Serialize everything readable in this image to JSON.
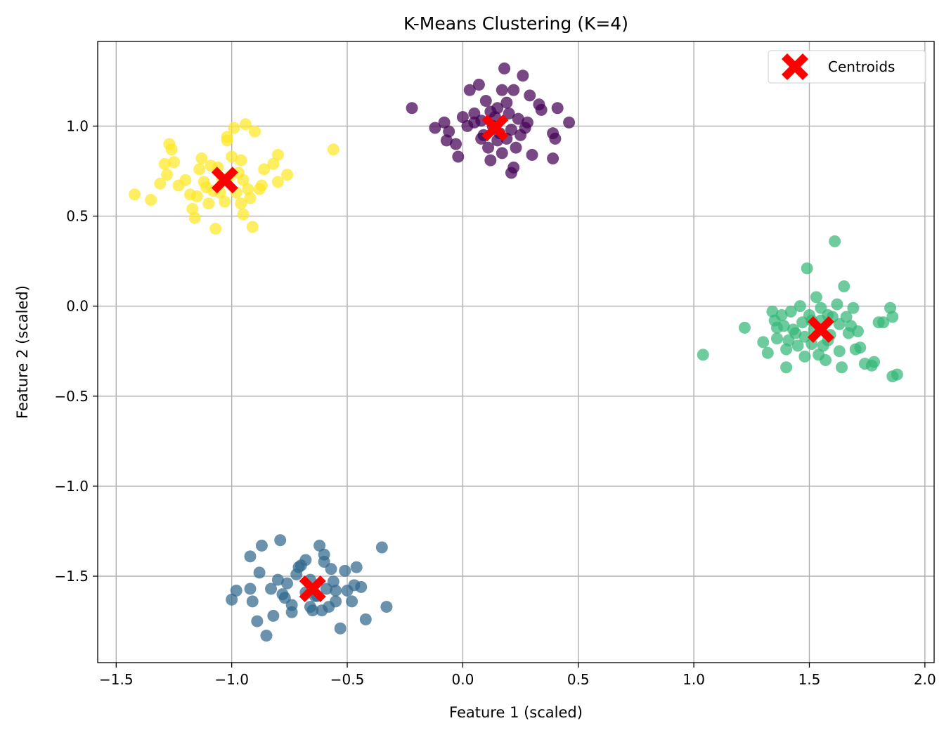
{
  "chart_data": {
    "type": "scatter",
    "title": "K-Means Clustering (K=4)",
    "xlabel": "Feature 1 (scaled)",
    "ylabel": "Feature 2 (scaled)",
    "xlim": [
      -1.58,
      2.04
    ],
    "ylim": [
      -1.98,
      1.47
    ],
    "xticks": [
      -1.5,
      -1.0,
      -0.5,
      0.0,
      0.5,
      1.0,
      1.5,
      2.0
    ],
    "xtick_labels": [
      "−1.5",
      "−1.0",
      "−0.5",
      "0.0",
      "0.5",
      "1.0",
      "1.5",
      "2.0"
    ],
    "yticks": [
      -1.5,
      -1.0,
      -0.5,
      0.0,
      0.5,
      1.0
    ],
    "ytick_labels": [
      "−1.5",
      "−1.0",
      "−0.5",
      "0.0",
      "0.5",
      "1.0"
    ],
    "grid": true,
    "legend": {
      "placement": "top-right",
      "entries": [
        "Centroids"
      ]
    },
    "clusters": [
      {
        "color": "#440154",
        "points": [
          [
            -0.22,
            1.1
          ],
          [
            -0.12,
            0.99
          ],
          [
            -0.08,
            1.02
          ],
          [
            -0.06,
            0.97
          ],
          [
            -0.03,
            0.9
          ],
          [
            0.0,
            1.05
          ],
          [
            0.02,
            1.0
          ],
          [
            0.03,
            1.2
          ],
          [
            0.05,
            1.07
          ],
          [
            0.07,
            1.23
          ],
          [
            0.08,
            1.03
          ],
          [
            0.09,
            0.95
          ],
          [
            0.1,
            1.14
          ],
          [
            0.11,
            0.88
          ],
          [
            0.12,
            0.81
          ],
          [
            0.13,
            1.0
          ],
          [
            0.15,
            1.1
          ],
          [
            0.16,
            0.96
          ],
          [
            0.17,
            1.2
          ],
          [
            0.18,
            1.32
          ],
          [
            0.19,
            0.93
          ],
          [
            0.2,
            1.07
          ],
          [
            0.21,
            0.74
          ],
          [
            0.22,
            1.2
          ],
          [
            0.23,
            0.88
          ],
          [
            0.24,
            1.04
          ],
          [
            0.26,
            1.28
          ],
          [
            0.27,
            0.99
          ],
          [
            0.28,
            1.02
          ],
          [
            0.29,
            1.17
          ],
          [
            0.3,
            0.84
          ],
          [
            0.33,
            1.12
          ],
          [
            0.34,
            1.09
          ],
          [
            0.39,
            0.96
          ],
          [
            0.4,
            0.93
          ],
          [
            0.41,
            1.1
          ],
          [
            0.46,
            1.02
          ],
          [
            0.39,
            0.82
          ],
          [
            -0.07,
            0.92
          ],
          [
            0.05,
            1.02
          ],
          [
            0.14,
            1.05
          ],
          [
            0.17,
            0.85
          ],
          [
            0.19,
            1.13
          ],
          [
            0.25,
            0.95
          ],
          [
            0.21,
            0.98
          ],
          [
            0.15,
            0.92
          ],
          [
            -0.02,
            0.83
          ],
          [
            0.22,
            0.77
          ],
          [
            0.08,
            0.93
          ],
          [
            0.12,
            1.08
          ]
        ]
      },
      {
        "color": "#31688e",
        "points": [
          [
            -1.0,
            -1.63
          ],
          [
            -0.98,
            -1.58
          ],
          [
            -0.92,
            -1.39
          ],
          [
            -0.91,
            -1.64
          ],
          [
            -0.89,
            -1.75
          ],
          [
            -0.87,
            -1.33
          ],
          [
            -0.85,
            -1.83
          ],
          [
            -0.83,
            -1.57
          ],
          [
            -0.82,
            -1.72
          ],
          [
            -0.8,
            -1.52
          ],
          [
            -0.79,
            -1.3
          ],
          [
            -0.78,
            -1.6
          ],
          [
            -0.76,
            -1.54
          ],
          [
            -0.74,
            -1.66
          ],
          [
            -0.72,
            -1.49
          ],
          [
            -0.7,
            -1.44
          ],
          [
            -0.68,
            -1.41
          ],
          [
            -0.66,
            -1.52
          ],
          [
            -0.65,
            -1.69
          ],
          [
            -0.63,
            -1.61
          ],
          [
            -0.62,
            -1.33
          ],
          [
            -0.6,
            -1.38
          ],
          [
            -0.59,
            -1.57
          ],
          [
            -0.57,
            -1.46
          ],
          [
            -0.56,
            -1.53
          ],
          [
            -0.55,
            -1.64
          ],
          [
            -0.53,
            -1.79
          ],
          [
            -0.51,
            -1.47
          ],
          [
            -0.5,
            -1.58
          ],
          [
            -0.48,
            -1.64
          ],
          [
            -0.46,
            -1.45
          ],
          [
            -0.44,
            -1.56
          ],
          [
            -0.42,
            -1.74
          ],
          [
            -0.35,
            -1.34
          ],
          [
            -0.33,
            -1.67
          ],
          [
            -0.92,
            -1.57
          ],
          [
            -0.88,
            -1.48
          ],
          [
            -0.74,
            -1.7
          ],
          [
            -0.64,
            -1.61
          ],
          [
            -0.58,
            -1.67
          ],
          [
            -0.55,
            -1.58
          ],
          [
            -0.71,
            -1.45
          ],
          [
            -0.68,
            -1.59
          ],
          [
            -0.61,
            -1.69
          ],
          [
            -0.77,
            -1.62
          ],
          [
            -0.6,
            -1.42
          ],
          [
            -0.47,
            -1.55
          ],
          [
            -0.66,
            -1.67
          ]
        ]
      },
      {
        "color": "#35b779",
        "points": [
          [
            1.04,
            -0.27
          ],
          [
            1.22,
            -0.12
          ],
          [
            1.3,
            -0.2
          ],
          [
            1.32,
            -0.26
          ],
          [
            1.34,
            -0.03
          ],
          [
            1.35,
            -0.08
          ],
          [
            1.36,
            -0.18
          ],
          [
            1.38,
            -0.05
          ],
          [
            1.39,
            -0.11
          ],
          [
            1.4,
            -0.24
          ],
          [
            1.4,
            -0.34
          ],
          [
            1.42,
            -0.03
          ],
          [
            1.43,
            -0.13
          ],
          [
            1.45,
            -0.22
          ],
          [
            1.46,
            0.0
          ],
          [
            1.47,
            -0.09
          ],
          [
            1.48,
            -0.17
          ],
          [
            1.49,
            0.21
          ],
          [
            1.5,
            -0.05
          ],
          [
            1.51,
            -0.21
          ],
          [
            1.52,
            -0.13
          ],
          [
            1.53,
            0.05
          ],
          [
            1.54,
            -0.27
          ],
          [
            1.55,
            -0.08
          ],
          [
            1.56,
            -0.22
          ],
          [
            1.57,
            -0.3
          ],
          [
            1.58,
            -0.05
          ],
          [
            1.59,
            -0.16
          ],
          [
            1.6,
            -0.06
          ],
          [
            1.61,
            0.36
          ],
          [
            1.62,
            0.01
          ],
          [
            1.63,
            -0.25
          ],
          [
            1.64,
            -0.34
          ],
          [
            1.65,
            0.11
          ],
          [
            1.66,
            -0.06
          ],
          [
            1.68,
            -0.11
          ],
          [
            1.69,
            -0.01
          ],
          [
            1.7,
            -0.24
          ],
          [
            1.72,
            -0.23
          ],
          [
            1.74,
            -0.32
          ],
          [
            1.77,
            -0.33
          ],
          [
            1.78,
            -0.31
          ],
          [
            1.8,
            -0.09
          ],
          [
            1.82,
            -0.09
          ],
          [
            1.85,
            -0.01
          ],
          [
            1.86,
            -0.06
          ],
          [
            1.86,
            -0.39
          ],
          [
            1.88,
            -0.38
          ],
          [
            1.44,
            -0.15
          ],
          [
            1.51,
            -0.08
          ],
          [
            1.58,
            -0.19
          ],
          [
            1.63,
            -0.1
          ],
          [
            1.67,
            -0.15
          ],
          [
            1.48,
            -0.28
          ],
          [
            1.36,
            -0.12
          ],
          [
            1.55,
            -0.01
          ],
          [
            1.71,
            -0.14
          ],
          [
            1.41,
            -0.19
          ]
        ]
      },
      {
        "color": "#fde725",
        "points": [
          [
            -1.42,
            0.62
          ],
          [
            -1.35,
            0.59
          ],
          [
            -1.31,
            0.68
          ],
          [
            -1.29,
            0.79
          ],
          [
            -1.28,
            0.73
          ],
          [
            -1.27,
            0.9
          ],
          [
            -1.26,
            0.87
          ],
          [
            -1.25,
            0.8
          ],
          [
            -1.2,
            0.7
          ],
          [
            -1.17,
            0.54
          ],
          [
            -1.16,
            0.49
          ],
          [
            -1.15,
            0.61
          ],
          [
            -1.14,
            0.76
          ],
          [
            -1.13,
            0.82
          ],
          [
            -1.12,
            0.69
          ],
          [
            -1.1,
            0.57
          ],
          [
            -1.08,
            0.64
          ],
          [
            -1.07,
            0.43
          ],
          [
            -1.06,
            0.77
          ],
          [
            -1.05,
            0.63
          ],
          [
            -1.03,
            0.58
          ],
          [
            -1.02,
            0.92
          ],
          [
            -1.01,
            0.72
          ],
          [
            -1.0,
            0.83
          ],
          [
            -0.99,
            0.99
          ],
          [
            -0.98,
            0.63
          ],
          [
            -0.96,
            0.81
          ],
          [
            -0.95,
            0.7
          ],
          [
            -0.94,
            1.01
          ],
          [
            -0.93,
            0.65
          ],
          [
            -0.92,
            0.6
          ],
          [
            -0.91,
            0.44
          ],
          [
            -0.9,
            0.97
          ],
          [
            -0.88,
            0.65
          ],
          [
            -0.86,
            0.76
          ],
          [
            -0.82,
            0.79
          ],
          [
            -0.8,
            0.84
          ],
          [
            -0.76,
            0.73
          ],
          [
            -0.56,
            0.87
          ],
          [
            -1.18,
            0.62
          ],
          [
            -1.11,
            0.66
          ],
          [
            -1.04,
            0.7
          ],
          [
            -0.97,
            0.74
          ],
          [
            -1.09,
            0.78
          ],
          [
            -0.95,
            0.51
          ],
          [
            -1.02,
            0.94
          ],
          [
            -0.87,
            0.67
          ],
          [
            -0.8,
            0.69
          ],
          [
            -1.23,
            0.67
          ],
          [
            -0.96,
            0.57
          ]
        ]
      }
    ],
    "centroids": [
      [
        0.14,
        0.99
      ],
      [
        -0.65,
        -1.57
      ],
      [
        1.55,
        -0.13
      ],
      [
        -1.03,
        0.7
      ]
    ],
    "centroid_color": "#ff0000"
  }
}
